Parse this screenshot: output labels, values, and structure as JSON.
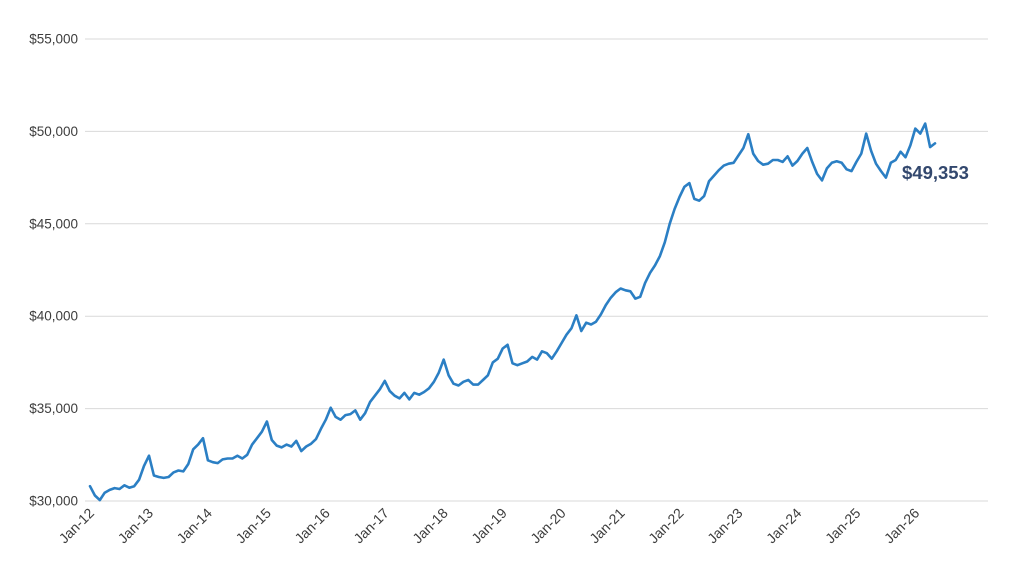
{
  "chart_data": {
    "type": "line",
    "title": "",
    "ylim": [
      30000,
      55000
    ],
    "grid": true,
    "legend": "none",
    "y_ticks": [
      {
        "label": "$30,000",
        "value": 30000
      },
      {
        "label": "$35,000",
        "value": 35000
      },
      {
        "label": "$40,000",
        "value": 40000
      },
      {
        "label": "$45,000",
        "value": 45000
      },
      {
        "label": "$50,000",
        "value": 50000
      },
      {
        "label": "$55,000",
        "value": 55000
      }
    ],
    "x_ticks": [
      {
        "label": "Jan-12",
        "index": 0
      },
      {
        "label": "Jan-13",
        "index": 12
      },
      {
        "label": "Jan-14",
        "index": 24
      },
      {
        "label": "Jan-15",
        "index": 36
      },
      {
        "label": "Jan-16",
        "index": 48
      },
      {
        "label": "Jan-17",
        "index": 60
      },
      {
        "label": "Jan-18",
        "index": 72
      },
      {
        "label": "Jan-19",
        "index": 84
      },
      {
        "label": "Jan-20",
        "index": 96
      },
      {
        "label": "Jan-21",
        "index": 108
      },
      {
        "label": "Jan-22",
        "index": 120
      },
      {
        "label": "Jan-23",
        "index": 132
      },
      {
        "label": "Jan-24",
        "index": 144
      },
      {
        "label": "Jan-25",
        "index": 156
      },
      {
        "label": "Jan-26",
        "index": 168
      }
    ],
    "values": [
      30800,
      30300,
      30050,
      30450,
      30600,
      30700,
      30650,
      30850,
      30720,
      30800,
      31150,
      31900,
      32450,
      31380,
      31300,
      31250,
      31300,
      31550,
      31650,
      31600,
      32000,
      32800,
      33050,
      33400,
      32200,
      32100,
      32050,
      32250,
      32300,
      32300,
      32450,
      32300,
      32500,
      33050,
      33400,
      33750,
      34300,
      33300,
      33000,
      32900,
      33050,
      32950,
      33250,
      32700,
      32950,
      33100,
      33350,
      33900,
      34400,
      35050,
      34550,
      34400,
      34650,
      34700,
      34900,
      34400,
      34750,
      35350,
      35700,
      36050,
      36500,
      35950,
      35700,
      35550,
      35850,
      35500,
      35850,
      35750,
      35900,
      36100,
      36450,
      36950,
      37650,
      36800,
      36350,
      36250,
      36450,
      36550,
      36300,
      36300,
      36550,
      36800,
      37500,
      37700,
      38250,
      38450,
      37450,
      37350,
      37450,
      37550,
      37800,
      37650,
      38100,
      38000,
      37700,
      38100,
      38550,
      39000,
      39350,
      40050,
      39200,
      39650,
      39550,
      39700,
      40100,
      40600,
      41000,
      41300,
      41500,
      41400,
      41350,
      40950,
      41050,
      41800,
      42350,
      42750,
      43250,
      44000,
      45000,
      45800,
      46450,
      47000,
      47200,
      46350,
      46250,
      46500,
      47300,
      47600,
      47900,
      48150,
      48250,
      48300,
      48700,
      49100,
      49850,
      48800,
      48400,
      48200,
      48250,
      48450,
      48450,
      48350,
      48650,
      48150,
      48400,
      48800,
      49100,
      48350,
      47700,
      47350,
      48000,
      48300,
      48380,
      48300,
      47950,
      47850,
      48350,
      48800,
      49880,
      48950,
      48250,
      47850,
      47500,
      48300,
      48450,
      48900,
      48600,
      49250,
      50150,
      49880,
      50420,
      49150,
      49353
    ],
    "end_label": "$49,353",
    "colors": {
      "line": "#2b7fc4",
      "grid": "#d9d9d9",
      "axis_text": "#3d3d3d",
      "end_label": "#33486e",
      "background": "#ffffff"
    }
  }
}
